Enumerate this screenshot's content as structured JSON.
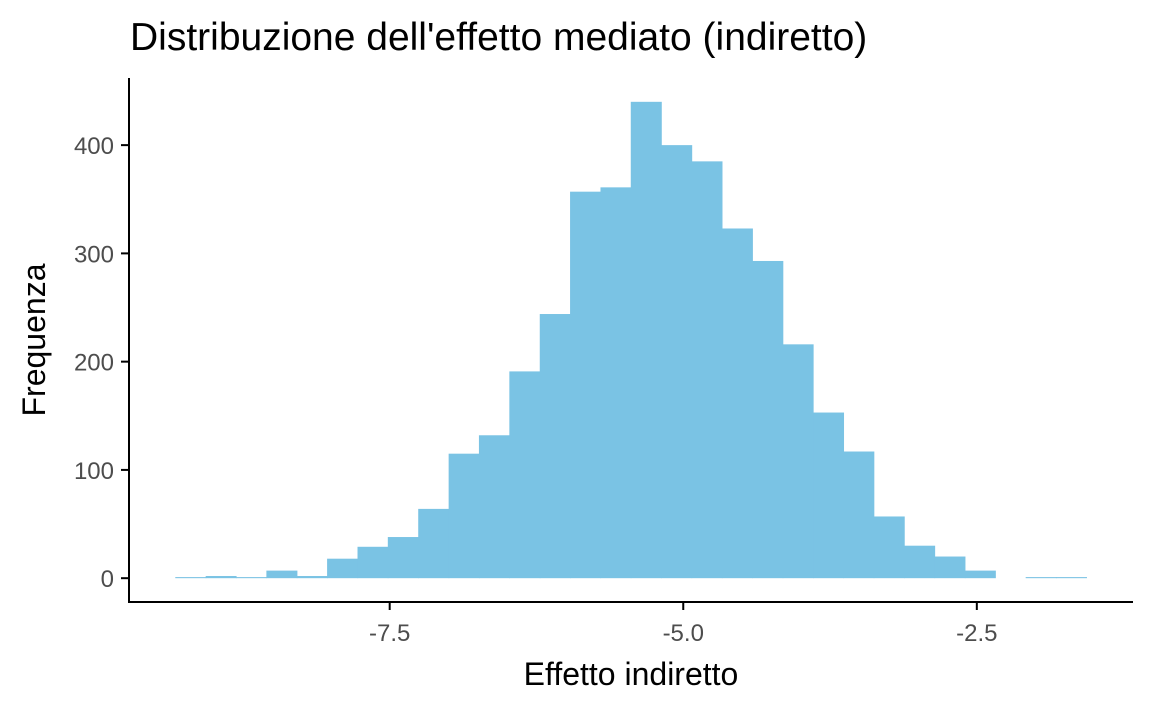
{
  "chart_data": {
    "type": "bar",
    "title": "Distribuzione dell'effetto mediato (indiretto)",
    "xlabel": "Effetto indiretto",
    "ylabel": "Frequenza",
    "bin_width": 0.2586,
    "bins": [
      {
        "x_start": -9.326,
        "x_end": -9.067,
        "count": 1
      },
      {
        "x_start": -9.067,
        "x_end": -8.809,
        "count": 2
      },
      {
        "x_start": -8.809,
        "x_end": -8.55,
        "count": 1
      },
      {
        "x_start": -8.55,
        "x_end": -8.291,
        "count": 7
      },
      {
        "x_start": -8.291,
        "x_end": -8.033,
        "count": 2
      },
      {
        "x_start": -8.033,
        "x_end": -7.774,
        "count": 18
      },
      {
        "x_start": -7.774,
        "x_end": -7.516,
        "count": 29
      },
      {
        "x_start": -7.516,
        "x_end": -7.257,
        "count": 38
      },
      {
        "x_start": -7.257,
        "x_end": -6.998,
        "count": 64
      },
      {
        "x_start": -6.998,
        "x_end": -6.74,
        "count": 115
      },
      {
        "x_start": -6.74,
        "x_end": -6.481,
        "count": 132
      },
      {
        "x_start": -6.481,
        "x_end": -6.222,
        "count": 191
      },
      {
        "x_start": -6.222,
        "x_end": -5.964,
        "count": 244
      },
      {
        "x_start": -5.964,
        "x_end": -5.705,
        "count": 357
      },
      {
        "x_start": -5.705,
        "x_end": -5.447,
        "count": 361
      },
      {
        "x_start": -5.447,
        "x_end": -5.188,
        "count": 440
      },
      {
        "x_start": -5.188,
        "x_end": -4.929,
        "count": 400
      },
      {
        "x_start": -4.929,
        "x_end": -4.671,
        "count": 385
      },
      {
        "x_start": -4.671,
        "x_end": -4.412,
        "count": 323
      },
      {
        "x_start": -4.412,
        "x_end": -4.153,
        "count": 293
      },
      {
        "x_start": -4.153,
        "x_end": -3.895,
        "count": 216
      },
      {
        "x_start": -3.895,
        "x_end": -3.636,
        "count": 153
      },
      {
        "x_start": -3.636,
        "x_end": -3.378,
        "count": 117
      },
      {
        "x_start": -3.378,
        "x_end": -3.119,
        "count": 57
      },
      {
        "x_start": -3.119,
        "x_end": -2.86,
        "count": 30
      },
      {
        "x_start": -2.86,
        "x_end": -2.602,
        "count": 20
      },
      {
        "x_start": -2.602,
        "x_end": -2.343,
        "count": 7
      },
      {
        "x_start": -2.343,
        "x_end": -2.084,
        "count": 0
      },
      {
        "x_start": -2.084,
        "x_end": -1.826,
        "count": 1
      },
      {
        "x_start": -1.826,
        "x_end": -1.567,
        "count": 1
      }
    ],
    "x_ticks": [
      {
        "value": -7.5,
        "label": "-7.5"
      },
      {
        "value": -5.0,
        "label": "-5.0"
      },
      {
        "value": -2.5,
        "label": "-2.5"
      }
    ],
    "y_ticks": [
      {
        "value": 0,
        "label": "0"
      },
      {
        "value": 100,
        "label": "100"
      },
      {
        "value": 200,
        "label": "200"
      },
      {
        "value": 300,
        "label": "300"
      },
      {
        "value": 400,
        "label": "400"
      }
    ],
    "xlim": [
      -9.72,
      -1.17
    ],
    "ylim": [
      -22,
      462
    ],
    "grid": false,
    "legend": "none",
    "colors": {
      "fill": "#7ac3e4",
      "axis": "#000000",
      "tick_label": "#4d4d4d"
    }
  }
}
